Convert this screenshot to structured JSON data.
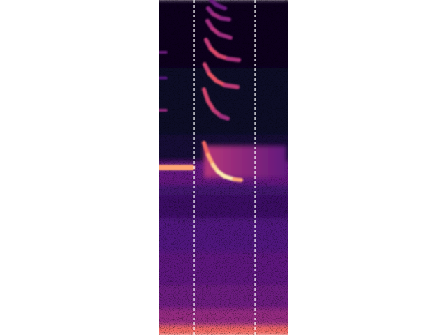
{
  "chart_data": {
    "type": "spectrogram",
    "xlim": [
      0,
      100
    ],
    "ylim": [
      0,
      100
    ],
    "tick_labels": false,
    "grid": false,
    "color_range": [
      0,
      1
    ],
    "vlines": [
      27.2,
      74.5
    ],
    "noise_floor": {
      "y_edges": [
        0,
        3,
        8,
        15,
        25,
        35,
        42,
        45,
        52,
        60,
        80,
        100
      ],
      "levels": [
        0.68,
        0.42,
        0.32,
        0.28,
        0.25,
        0.2,
        0.22,
        0.3,
        0.1,
        0.07,
        0.05
      ]
    },
    "band": {
      "x": [
        34.8,
        98.9
      ],
      "y_low": 47,
      "y_high": 56.5,
      "intensity": [
        0.5,
        0.3
      ]
    },
    "series": [
      {
        "x": [
          0,
          25.5
        ],
        "y": [
          50,
          50
        ],
        "intensity": [
          0.88,
          0.75
        ]
      },
      {
        "x": [
          0,
          5.4
        ],
        "y": [
          84.4,
          84.4
        ],
        "intensity": [
          0.35,
          0.3
        ]
      },
      {
        "x": [
          0,
          5.4
        ],
        "y": [
          76.7,
          76.7
        ],
        "intensity": [
          0.28,
          0.25
        ]
      },
      {
        "x": [
          0,
          5.4
        ],
        "y": [
          67.1,
          67.1
        ],
        "intensity": [
          0.45,
          0.4
        ]
      },
      {
        "x": [
          34.8,
          38.0,
          41.8,
          45.7,
          51.1,
          58.2,
          63.6
        ],
        "y": [
          57.3,
          53.75,
          50.8,
          48.75,
          47.3,
          46.5,
          46.25
        ],
        "intensity": [
          0.6,
          0.75,
          0.88,
          0.95,
          0.98,
          0.95,
          0.7
        ]
      },
      {
        "x": [
          34.8,
          38.0,
          42.4,
          47.8,
          53.3
        ],
        "y": [
          73.3,
          69.8,
          67.1,
          65.4,
          64.6
        ],
        "intensity": [
          0.55,
          0.6,
          0.55,
          0.5,
          0.4
        ]
      },
      {
        "x": [
          35.3,
          39.1,
          44.6,
          51.1,
          60.9
        ],
        "y": [
          80.8,
          77.9,
          75.8,
          74.6,
          74.0
        ],
        "intensity": [
          0.5,
          0.62,
          0.65,
          0.6,
          0.45
        ]
      },
      {
        "x": [
          36.4,
          40.2,
          45.7,
          53.3,
          62.0
        ],
        "y": [
          88.1,
          85.4,
          83.5,
          82.5,
          82.1
        ],
        "intensity": [
          0.45,
          0.6,
          0.6,
          0.55,
          0.4
        ]
      },
      {
        "x": [
          37.5,
          41.3,
          46.7,
          55.4
        ],
        "y": [
          93.75,
          91.5,
          89.8,
          88.75
        ],
        "intensity": [
          0.4,
          0.5,
          0.5,
          0.4
        ]
      },
      {
        "x": [
          38.0,
          41.8,
          47.8,
          54.3
        ],
        "y": [
          97.5,
          95.8,
          94.6,
          94.2
        ],
        "intensity": [
          0.35,
          0.45,
          0.45,
          0.35
        ]
      },
      {
        "x": [
          40.2,
          44.6,
          51.1
        ],
        "y": [
          100,
          98.5,
          97.5
        ],
        "intensity": [
          0.3,
          0.35,
          0.3
        ]
      }
    ]
  }
}
